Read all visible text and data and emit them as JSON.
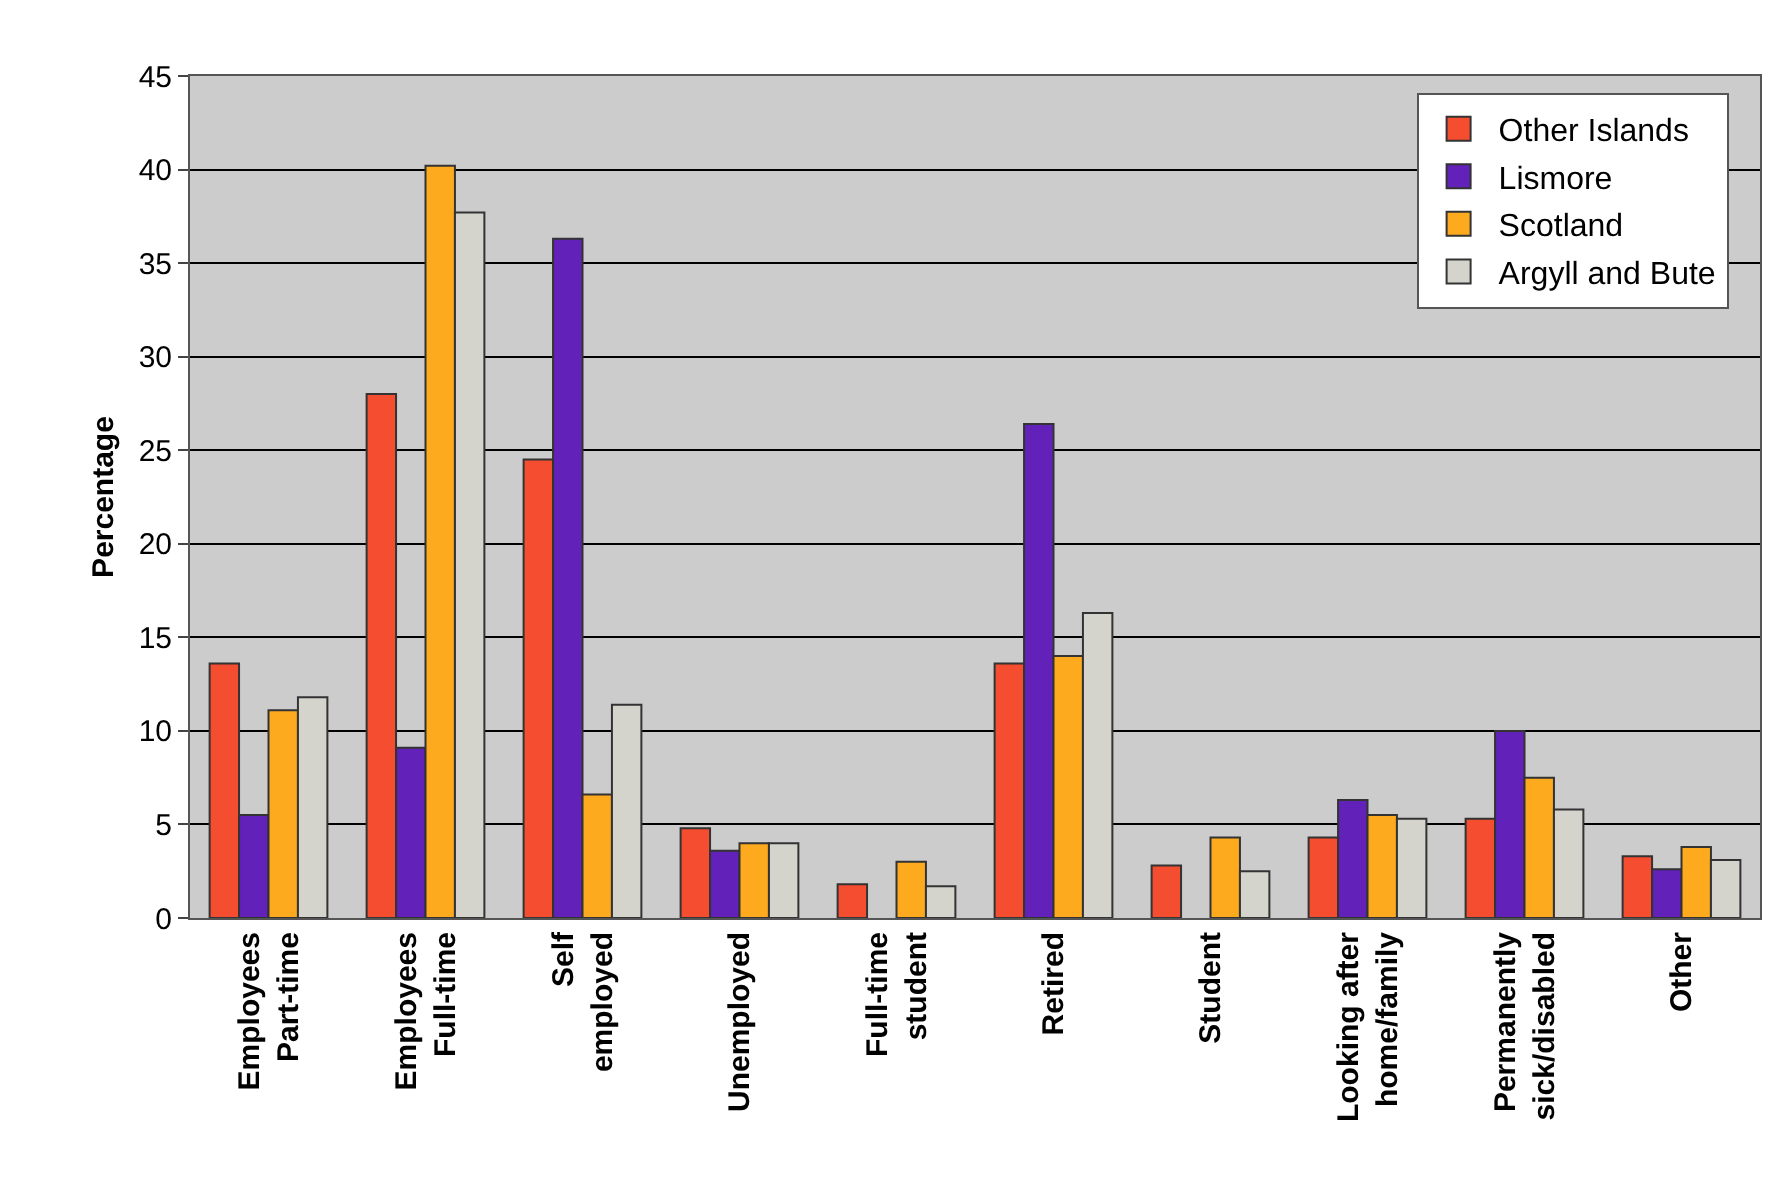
{
  "chart_data": {
    "type": "bar",
    "ylabel": "Percentage",
    "categories": [
      "Employees\nPart-time",
      "Employees\nFull-time",
      "Self\nemployed",
      "Unemployed",
      "Full-time\nstudent",
      "Retired",
      "Student",
      "Looking after\nhome/family",
      "Permanently\nsick/disabled",
      "Other"
    ],
    "series": [
      {
        "name": "Other Islands",
        "color": "#f54d2f",
        "values": [
          13.6,
          28.0,
          24.5,
          4.8,
          1.8,
          13.6,
          2.8,
          4.3,
          5.3,
          3.3
        ]
      },
      {
        "name": "Lismore",
        "color": "#6221b8",
        "values": [
          5.5,
          9.1,
          36.3,
          3.6,
          null,
          26.4,
          null,
          6.3,
          10.0,
          2.6
        ]
      },
      {
        "name": "Scotland",
        "color": "#fdaa1f",
        "values": [
          11.1,
          40.2,
          6.6,
          4.0,
          3.0,
          14.0,
          4.3,
          5.5,
          7.5,
          3.8
        ]
      },
      {
        "name": "Argyll and Bute",
        "color": "#d4d4cc",
        "values": [
          11.8,
          37.7,
          11.4,
          4.0,
          1.7,
          16.3,
          2.5,
          5.3,
          5.8,
          3.1
        ]
      }
    ],
    "ylim": [
      0,
      45
    ],
    "yticks": [
      0,
      5,
      10,
      15,
      20,
      25,
      30,
      35,
      40,
      45
    ],
    "grid": "y",
    "legend": "top right"
  }
}
